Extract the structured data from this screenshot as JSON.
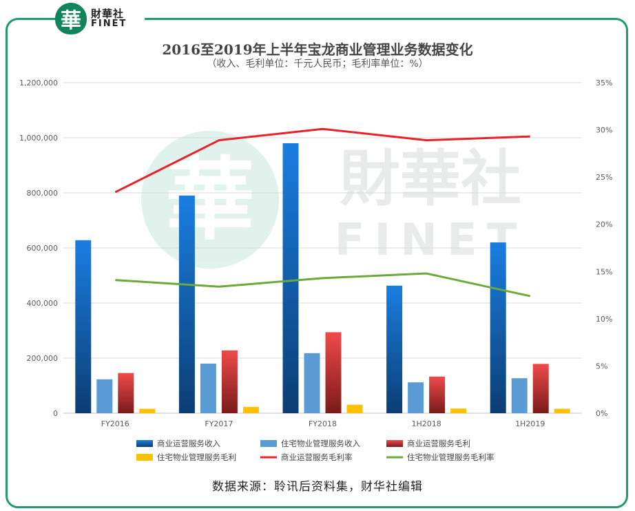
{
  "logo": {
    "seal_char": "華",
    "name_cn": "財華社",
    "name_en": "FINET"
  },
  "watermark": {
    "cn": "財華社",
    "en": "FINET",
    "seal_char": "華"
  },
  "chart_data": {
    "type": "bar",
    "title": "2016至2019年上半年宝龙商业管理业务数据变化",
    "subtitle": "（收入、毛利单位：千元人民币；毛利率单位：%）",
    "categories": [
      "FY2016",
      "FY2017",
      "FY2018",
      "1H2018",
      "1H2019"
    ],
    "left_axis": {
      "ylim": [
        0,
        1200000
      ],
      "ticks": [
        "0",
        "200,000",
        "400,000",
        "600,000",
        "800,000",
        "1,000,000",
        "1,200,000"
      ]
    },
    "right_axis": {
      "ylim": [
        0,
        35
      ],
      "ticks": [
        "0%",
        "5%",
        "10%",
        "15%",
        "20%",
        "25%",
        "30%",
        "35%"
      ]
    },
    "grid": true,
    "legend_position": "bottom",
    "series": [
      {
        "name": "商业运营服务收入",
        "kind": "bar",
        "axis": "left",
        "color": "#1a6fc9",
        "values": [
          628000,
          790000,
          980000,
          463000,
          620000
        ]
      },
      {
        "name": "住宅物业管理服务收入",
        "kind": "bar",
        "axis": "left",
        "color": "#5b9bd5",
        "values": [
          123000,
          180000,
          218000,
          112000,
          127000
        ]
      },
      {
        "name": "商业运营服务毛利",
        "kind": "bar",
        "axis": "left",
        "color": "#e03c3c",
        "values": [
          146000,
          228000,
          294000,
          133000,
          179000
        ]
      },
      {
        "name": "住宅物业管理服务毛利",
        "kind": "bar",
        "axis": "left",
        "color": "#ffc000",
        "values": [
          16000,
          23000,
          31000,
          17000,
          16000
        ]
      },
      {
        "name": "商业运营服务毛利率",
        "kind": "line",
        "axis": "right",
        "color": "#e8212a",
        "values": [
          23.4,
          28.9,
          30.1,
          28.9,
          29.3
        ]
      },
      {
        "name": "住宅物业管理服务毛利率",
        "kind": "line",
        "axis": "right",
        "color": "#6aaa3a",
        "values": [
          14.1,
          13.4,
          14.3,
          14.8,
          12.4
        ]
      }
    ]
  },
  "source_note": "数据来源：聆讯后资料集，财华社编辑"
}
